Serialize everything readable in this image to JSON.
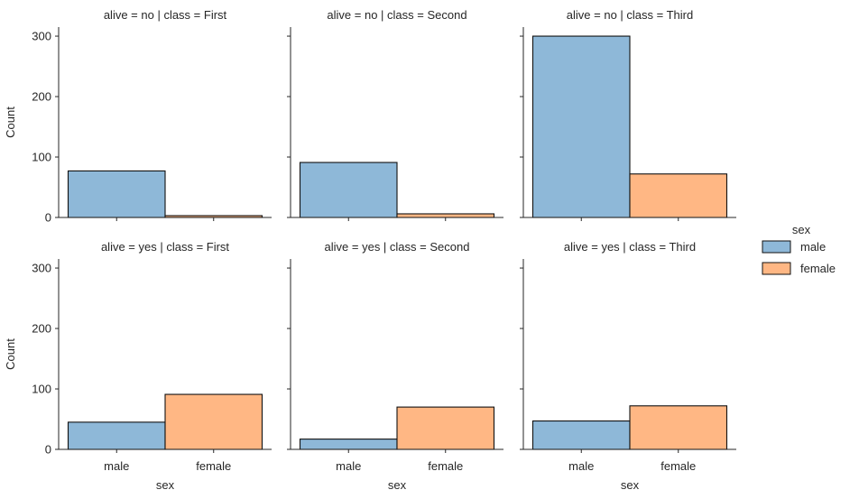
{
  "chart_data": {
    "type": "bar",
    "facet_rows": {
      "variable": "alive",
      "levels": [
        "no",
        "yes"
      ]
    },
    "facet_cols": {
      "variable": "class",
      "levels": [
        "First",
        "Second",
        "Third"
      ]
    },
    "categories": [
      "male",
      "female"
    ],
    "xlabel": "sex",
    "ylabel": "Count",
    "ylim": [
      0,
      315
    ],
    "yticks": [
      0,
      100,
      200,
      300
    ],
    "grid": false,
    "panels": [
      {
        "title": "alive = no | class = First",
        "row": 0,
        "col": 0,
        "values": [
          77,
          3
        ]
      },
      {
        "title": "alive = no | class = Second",
        "row": 0,
        "col": 1,
        "values": [
          91,
          6
        ]
      },
      {
        "title": "alive = no | class = Third",
        "row": 0,
        "col": 2,
        "values": [
          300,
          72
        ]
      },
      {
        "title": "alive = yes | class = First",
        "row": 1,
        "col": 0,
        "values": [
          45,
          91
        ]
      },
      {
        "title": "alive = yes | class = Second",
        "row": 1,
        "col": 1,
        "values": [
          17,
          70
        ]
      },
      {
        "title": "alive = yes | class = Third",
        "row": 1,
        "col": 2,
        "values": [
          47,
          72
        ]
      }
    ],
    "legend": {
      "title": "sex",
      "placement": "right",
      "entries": [
        {
          "label": "male",
          "color": "#8eb8d8"
        },
        {
          "label": "female",
          "color": "#ffb784"
        }
      ]
    },
    "colors": {
      "male": "#8eb8d8",
      "female": "#ffb784",
      "edge": "#111111",
      "axis": "#262626"
    }
  }
}
